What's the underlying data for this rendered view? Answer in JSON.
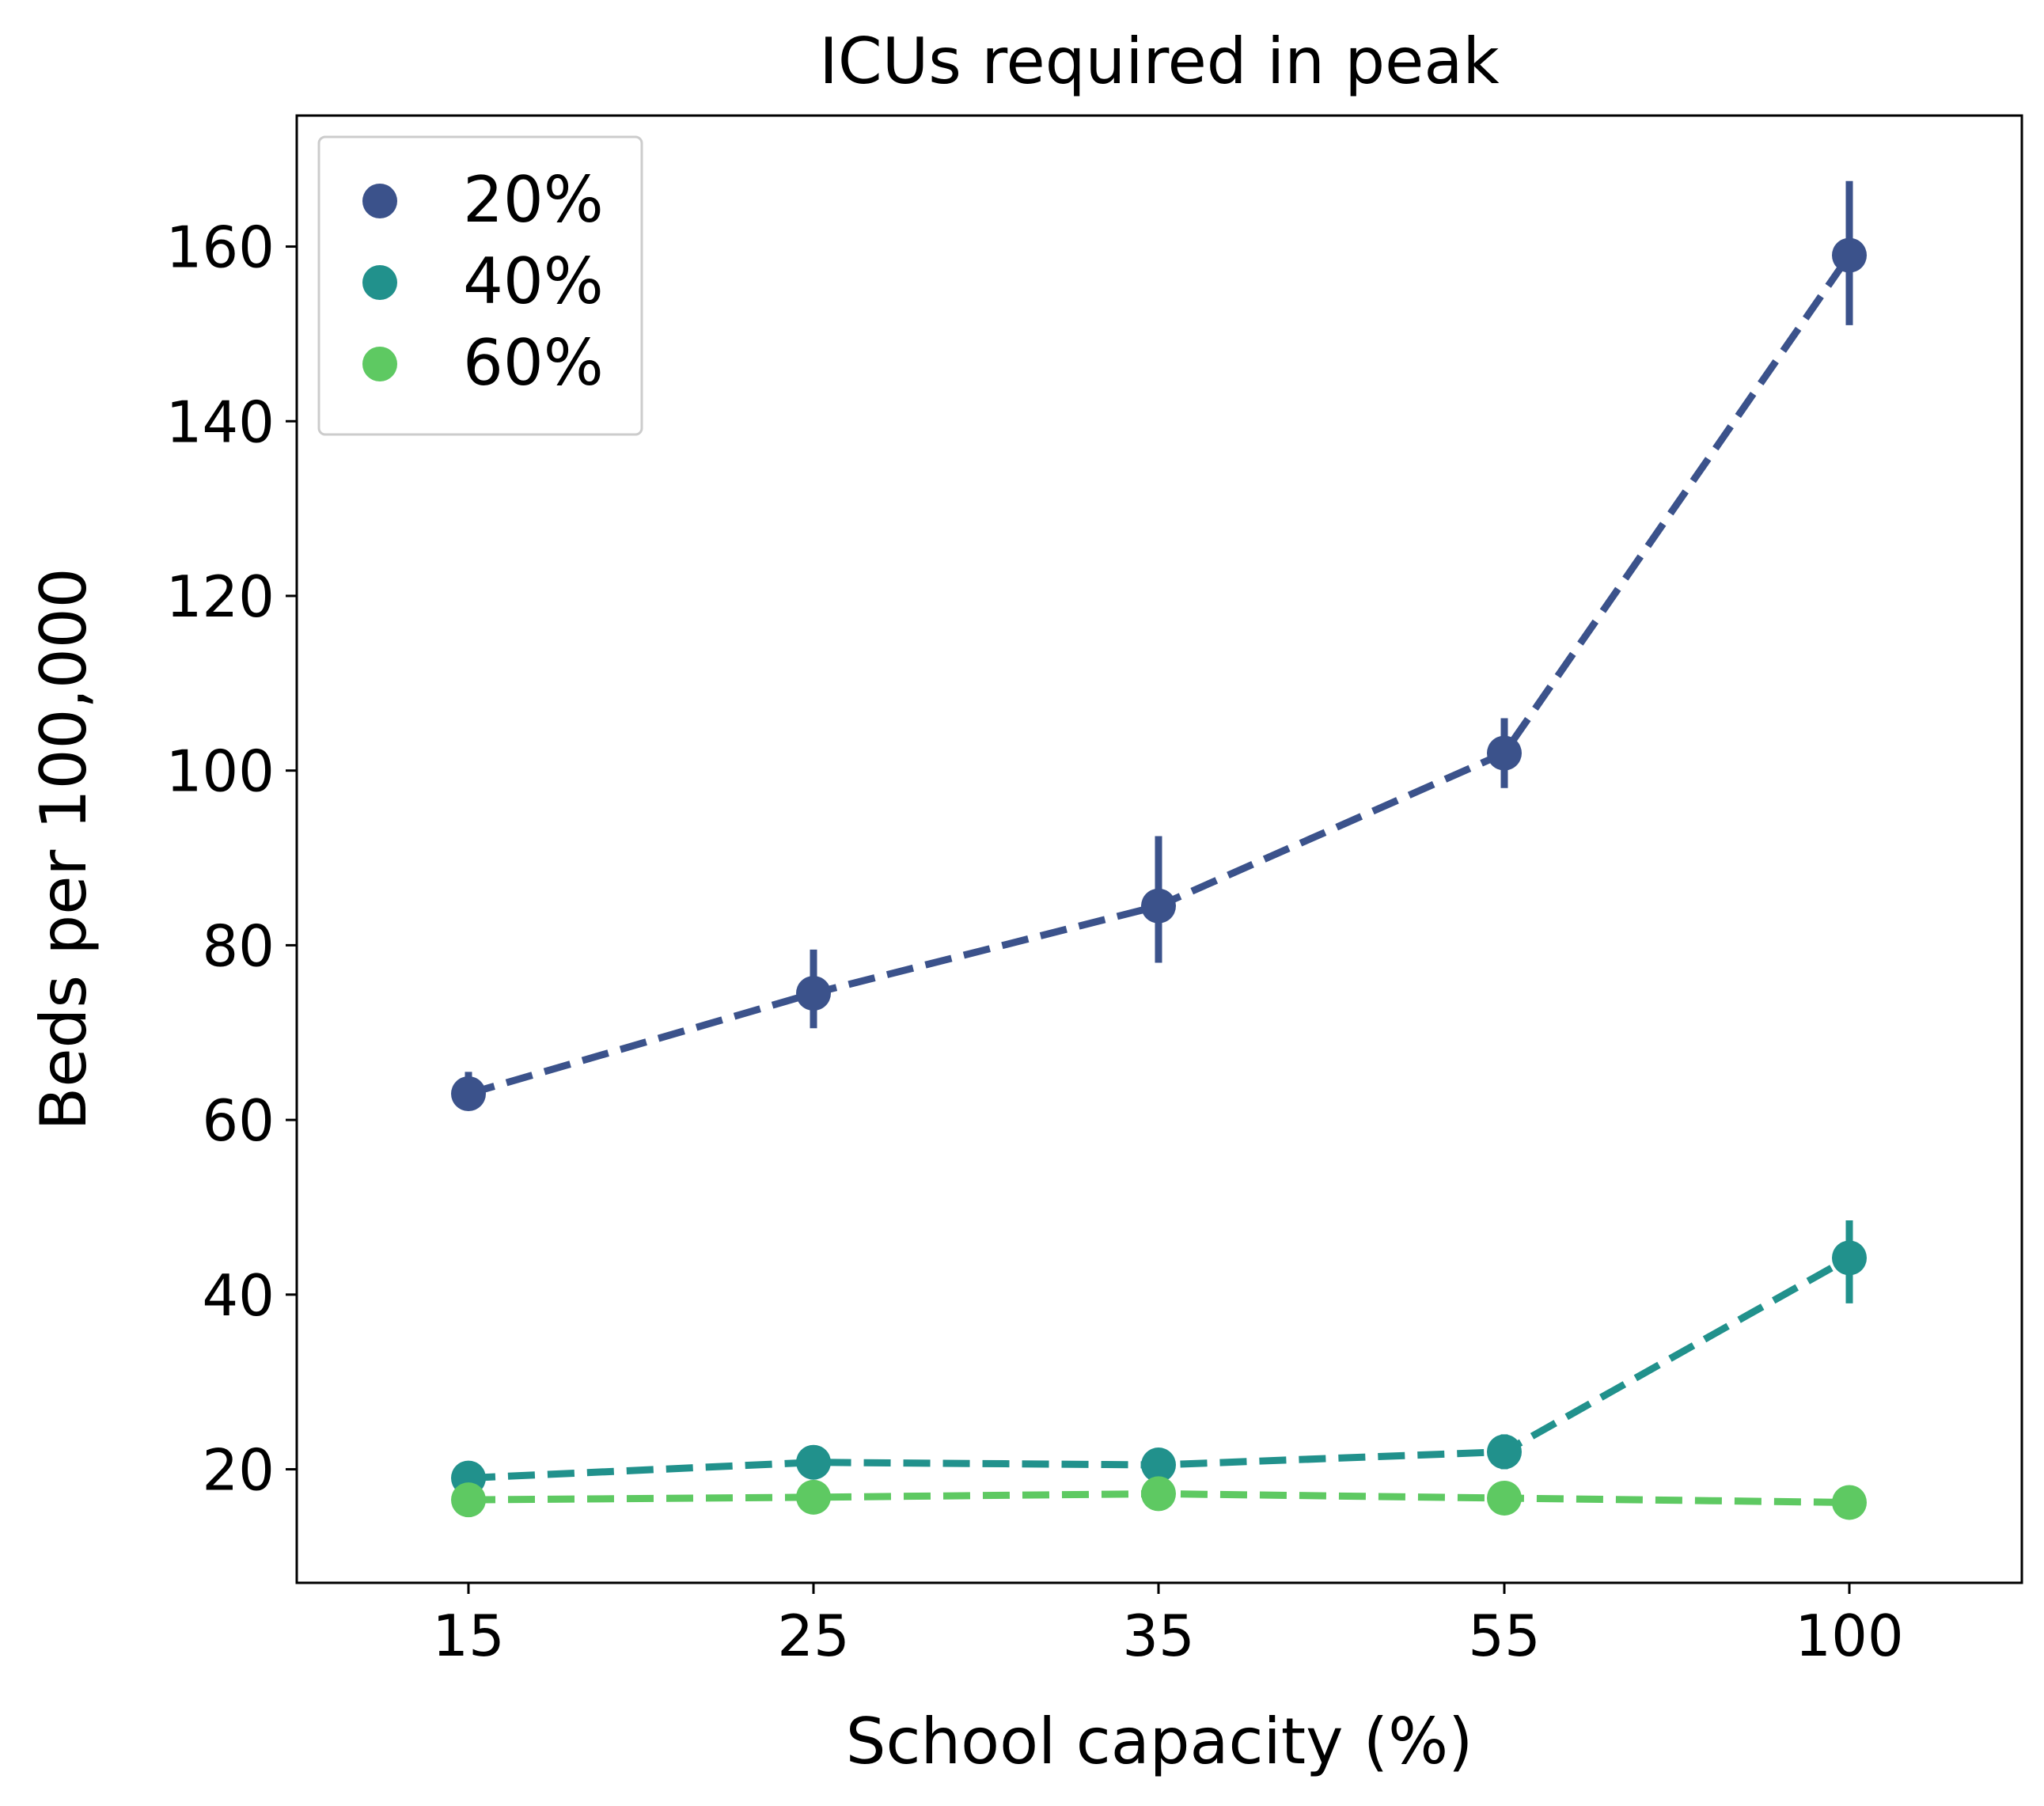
{
  "chart_data": {
    "type": "line",
    "title": "ICUs required in peak",
    "xlabel": "School capacity (%)",
    "ylabel": "Beds per 100,000",
    "categories": [
      "15",
      "25",
      "35",
      "55",
      "100"
    ],
    "y_ticks": [
      20,
      40,
      60,
      80,
      100,
      120,
      140,
      160
    ],
    "ylim": [
      7,
      175
    ],
    "grid": false,
    "legend_position": "top-left",
    "line_style": "dashed",
    "series": [
      {
        "name": "20%",
        "color": "#3b528b",
        "values": [
          63.0,
          74.5,
          84.5,
          102.0,
          159.0
        ],
        "err_low": [
          62.0,
          70.5,
          78.0,
          98.0,
          151.0
        ],
        "err_high": [
          65.5,
          79.5,
          92.5,
          106.0,
          167.5
        ]
      },
      {
        "name": "40%",
        "color": "#21918c",
        "values": [
          19.0,
          20.8,
          20.5,
          22.0,
          44.2
        ],
        "err_low": [
          17.5,
          19.5,
          19.0,
          20.0,
          39.0
        ],
        "err_high": [
          20.5,
          22.0,
          22.0,
          24.0,
          48.5
        ]
      },
      {
        "name": "60%",
        "color": "#5ec962",
        "values": [
          16.5,
          16.8,
          17.2,
          16.7,
          16.2
        ],
        "err_low": [
          15.5,
          15.8,
          15.5,
          15.5,
          15.3
        ],
        "err_high": [
          18.0,
          18.0,
          19.0,
          18.0,
          17.2
        ]
      }
    ]
  }
}
